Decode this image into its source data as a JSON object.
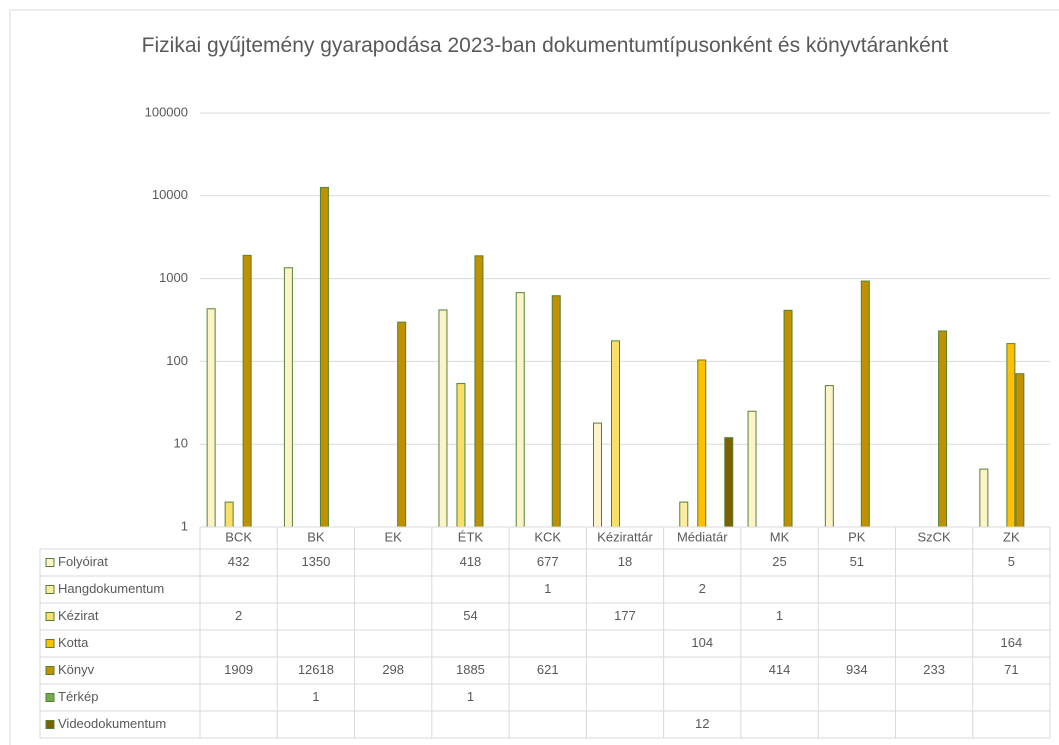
{
  "chart_data": {
    "type": "bar",
    "title": "Fizikai gyűjtemény gyarapodása 2023-ban dokumentumtípusonként és könyvtáranként",
    "categories": [
      "BCK",
      "BK",
      "EK",
      "ÉTK",
      "KCK",
      "Kézirattár",
      "Médiatár",
      "MK",
      "PK",
      "SzCK",
      "ZK"
    ],
    "log_scale": true,
    "ylim": [
      1,
      100000
    ],
    "yticks": [
      1,
      10,
      100,
      1000,
      10000,
      100000
    ],
    "grid": true,
    "series": [
      {
        "name": "Folyóirat",
        "color": "#fdf3c9",
        "values": [
          432,
          1350,
          null,
          418,
          677,
          18,
          null,
          25,
          51,
          null,
          5
        ]
      },
      {
        "name": "Hangdokumentum",
        "color": "#fbeca0",
        "values": [
          null,
          null,
          null,
          null,
          1,
          null,
          2,
          null,
          null,
          null,
          null
        ]
      },
      {
        "name": "Kézirat",
        "color": "#f7df6a",
        "values": [
          2,
          null,
          null,
          54,
          null,
          177,
          null,
          1,
          null,
          null,
          null
        ]
      },
      {
        "name": "Kotta",
        "color": "#ffc000",
        "values": [
          null,
          null,
          null,
          null,
          null,
          null,
          104,
          null,
          null,
          null,
          164
        ]
      },
      {
        "name": "Könyv",
        "color": "#bf9000",
        "values": [
          1909,
          12618,
          298,
          1885,
          621,
          null,
          null,
          414,
          934,
          233,
          71
        ]
      },
      {
        "name": "Térkép",
        "color": "#70ad47",
        "values": [
          null,
          1,
          null,
          1,
          null,
          null,
          null,
          null,
          null,
          null,
          null
        ]
      },
      {
        "name": "Videodokumentum",
        "color": "#7f6000",
        "values": [
          null,
          null,
          null,
          null,
          null,
          null,
          12,
          null,
          null,
          null,
          null
        ]
      }
    ]
  }
}
